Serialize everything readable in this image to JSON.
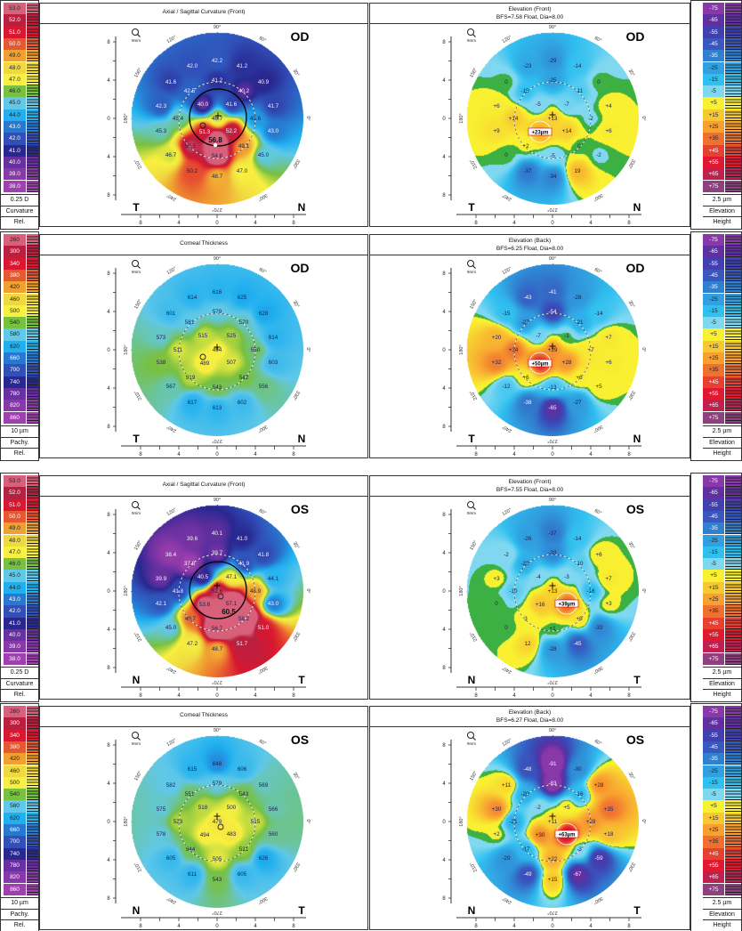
{
  "scales": {
    "curvature": {
      "stops": [
        {
          "label": "53.0",
          "value": 53,
          "color": "#d8607a"
        },
        {
          "label": "52.0",
          "value": 52,
          "color": "#b82040"
        },
        {
          "label": "51.0",
          "value": 51,
          "color": "#d81830"
        },
        {
          "label": "50.0",
          "value": 50,
          "color": "#e85830"
        },
        {
          "label": "49.0",
          "value": 49,
          "color": "#f0a030"
        },
        {
          "label": "48.0",
          "value": 48,
          "color": "#f0d840"
        },
        {
          "label": "47.0",
          "value": 47,
          "color": "#f8f040"
        },
        {
          "label": "46.0",
          "value": 46,
          "color": "#78c040"
        },
        {
          "label": "45.0",
          "value": 45,
          "color": "#60c8e8"
        },
        {
          "label": "44.0",
          "value": 44,
          "color": "#20b0f0"
        },
        {
          "label": "43.0",
          "value": 43,
          "color": "#2878d0"
        },
        {
          "label": "42.0",
          "value": 42,
          "color": "#3050b8"
        },
        {
          "label": "41.0",
          "value": 41,
          "color": "#282890"
        },
        {
          "label": "40.0",
          "value": 40,
          "color": "#6830a0"
        },
        {
          "label": "39.0",
          "value": 39,
          "color": "#8838a8"
        },
        {
          "label": "38.0",
          "value": 38,
          "color": "#a040b0"
        }
      ],
      "footer": [
        "0.25 D",
        "Curvature",
        "Rel."
      ]
    },
    "pachymetry": {
      "stops": [
        {
          "label": "260",
          "value": 260,
          "color": "#d8607a"
        },
        {
          "label": "300",
          "value": 300,
          "color": "#b82040"
        },
        {
          "label": "340",
          "value": 340,
          "color": "#d81830"
        },
        {
          "label": "380",
          "value": 380,
          "color": "#e85830"
        },
        {
          "label": "420",
          "value": 420,
          "color": "#f0a030"
        },
        {
          "label": "460",
          "value": 460,
          "color": "#f0d840"
        },
        {
          "label": "500",
          "value": 500,
          "color": "#f8f040"
        },
        {
          "label": "540",
          "value": 540,
          "color": "#78c040"
        },
        {
          "label": "580",
          "value": 580,
          "color": "#60c8e8"
        },
        {
          "label": "620",
          "value": 620,
          "color": "#20b0f0"
        },
        {
          "label": "660",
          "value": 660,
          "color": "#2878d0"
        },
        {
          "label": "700",
          "value": 700,
          "color": "#3050b8"
        },
        {
          "label": "740",
          "value": 740,
          "color": "#282890"
        },
        {
          "label": "780",
          "value": 780,
          "color": "#6830a0"
        },
        {
          "label": "820",
          "value": 820,
          "color": "#8838a8"
        },
        {
          "label": "860",
          "value": 860,
          "color": "#a040b0"
        }
      ],
      "footer": [
        "10 µm",
        "Pachy.",
        "Rel."
      ]
    },
    "elevation": {
      "stops": [
        {
          "label": "-75",
          "value": -75,
          "color": "#8838a8"
        },
        {
          "label": "-65",
          "value": -65,
          "color": "#6030a0"
        },
        {
          "label": "-55",
          "value": -55,
          "color": "#4040b0"
        },
        {
          "label": "-45",
          "value": -45,
          "color": "#3858c0"
        },
        {
          "label": "-35",
          "value": -35,
          "color": "#3080d0"
        },
        {
          "label": "-25",
          "value": -25,
          "color": "#30a0e0"
        },
        {
          "label": "-15",
          "value": -15,
          "color": "#30c0f0"
        },
        {
          "label": "-5",
          "value": -5,
          "color": "#80d8f0"
        },
        {
          "label": "+5",
          "value": 5,
          "color": "#f8f030"
        },
        {
          "label": "+15",
          "value": 15,
          "color": "#f8c830"
        },
        {
          "label": "+25",
          "value": 25,
          "color": "#f8a030"
        },
        {
          "label": "+35",
          "value": 35,
          "color": "#f07030"
        },
        {
          "label": "+45",
          "value": 45,
          "color": "#e84030"
        },
        {
          "label": "+55",
          "value": 55,
          "color": "#e01830"
        },
        {
          "label": "+65",
          "value": 65,
          "color": "#c02050"
        },
        {
          "label": "+75",
          "value": 75,
          "color": "#904080"
        }
      ],
      "zero_color": "#3cb043",
      "footer": [
        "2.5 µm",
        "Elevation",
        "Height"
      ]
    }
  },
  "rows": [
    {
      "left": "curvature",
      "right": "elevation"
    },
    {
      "left": "pachymetry",
      "right": "elevation"
    },
    {
      "left": "curvature",
      "right": "elevation"
    },
    {
      "left": "pachymetry",
      "right": "elevation"
    }
  ],
  "angle_labels": [
    "90°",
    "60°",
    "30°",
    "0°",
    "330°",
    "300°",
    "270°",
    "240°",
    "210°",
    "180°",
    "150°",
    "120°"
  ],
  "axis_ticks": [
    "8",
    "4",
    "0",
    "4",
    "8"
  ],
  "zoom_label": "9mm",
  "panels": [
    {
      "title": "Axial / Sagittal Curvature (Front)",
      "subtitle": "",
      "eye": "OD",
      "scale": "curvature",
      "orientation": [
        "T",
        "N"
      ],
      "values": [
        "42.2",
        "42.0",
        "41.2",
        "41.6",
        "41.2",
        "40.9",
        "42.5",
        "40.2",
        "42.3",
        "40.0",
        "41.6",
        "41.7",
        "45.4",
        "46.7",
        "43.6",
        "45.3",
        "51.3",
        "52.2",
        "43.0",
        "52.5",
        "49.1",
        "46.7",
        "54.6",
        "45.0",
        "50.2",
        "47.0",
        "48.7"
      ],
      "max_label": "56.8"
    },
    {
      "title": "Elevation (Front)",
      "subtitle": "BFS=7.58 Float, Dia=8.00",
      "eye": "OD",
      "scale": "elevation",
      "orientation": [
        "T",
        "N"
      ],
      "values": [
        "-29",
        "-23",
        "-14",
        "0",
        "-25",
        "0",
        "-15",
        "-11",
        "+6",
        "-5",
        "-7",
        "+4",
        "+14",
        "+13",
        "-2",
        "+9",
        "",
        "+14",
        "+6",
        "+2",
        "0",
        "0",
        "-5",
        "-2",
        "-37",
        "19",
        "-34"
      ],
      "box_label": "+23µm"
    },
    {
      "title": "Corneal Thickness",
      "subtitle": "",
      "eye": "OD",
      "scale": "pachymetry",
      "orientation": [
        "T",
        "N"
      ],
      "values": [
        "616",
        "614",
        "625",
        "601",
        "579",
        "628",
        "581",
        "570",
        "573",
        "515",
        "525",
        "614",
        "511",
        "494",
        "550",
        "538",
        "489",
        "507",
        "603",
        "519",
        "542",
        "567",
        "543",
        "556",
        "617",
        "602",
        "613"
      ]
    },
    {
      "title": "Elevation (Back)",
      "subtitle": "BFS=6.25 Float, Dia=8.00",
      "eye": "OD",
      "scale": "elevation",
      "orientation": [
        "T",
        "N"
      ],
      "values": [
        "-41",
        "-43",
        "-28",
        "-15",
        "-54",
        "-14",
        "-27",
        "-21",
        "+20",
        "-7",
        "-1",
        "+7",
        "+34",
        "+29",
        "+7",
        "+32",
        "",
        "+28",
        "+6",
        "+6",
        "+6",
        "-12",
        "-13",
        "+5",
        "-38",
        "-27",
        "-65"
      ],
      "box_label": "+50µm"
    },
    {
      "title": "Axial / Sagittal Curvature (Front)",
      "subtitle": "",
      "eye": "OS",
      "scale": "curvature",
      "orientation": [
        "N",
        "T"
      ],
      "values": [
        "40.1",
        "39.6",
        "41.0",
        "38.4",
        "39.7",
        "41.8",
        "37.8",
        "41.9",
        "39.9",
        "40.5",
        "47.1",
        "44.1",
        "41.8",
        "52.6",
        "48.9",
        "42.1",
        "53.8",
        "57.1",
        "43.0",
        "49.7",
        "58.2",
        "45.0",
        "56.7",
        "51.0",
        "47.2",
        "51.7",
        "48.7"
      ],
      "max_label": "60.5"
    },
    {
      "title": "Elevation (Front)",
      "subtitle": "BFS=7.55 Float, Dia=8.00",
      "eye": "OS",
      "scale": "elevation",
      "orientation": [
        "N",
        "T"
      ],
      "values": [
        "-37",
        "-26",
        "-14",
        "-2",
        "-33",
        "+6",
        "-22",
        "-10",
        "+3",
        "-4",
        "-3",
        "+7",
        "-10",
        "+13",
        "-16",
        "0",
        "+16",
        "",
        "+3",
        "3",
        "+8",
        "0",
        "+1",
        "-33",
        "12",
        "-45",
        "-28"
      ],
      "box_label": "+39µm"
    },
    {
      "title": "Corneal Thickness",
      "subtitle": "",
      "eye": "OS",
      "scale": "pachymetry",
      "orientation": [
        "N",
        "T"
      ],
      "values": [
        "648",
        "615",
        "606",
        "582",
        "579",
        "569",
        "551",
        "543",
        "575",
        "518",
        "500",
        "566",
        "523",
        "479",
        "515",
        "578",
        "494",
        "483",
        "560",
        "544",
        "531",
        "605",
        "505",
        "626",
        "611",
        "605",
        "543"
      ]
    },
    {
      "title": "Elevation (Back)",
      "subtitle": "BFS=6.27 Float, Dia=8.00",
      "eye": "OS",
      "scale": "elevation",
      "orientation": [
        "N",
        "T"
      ],
      "values": [
        "-91",
        "-48",
        "-30",
        "+11",
        "-83",
        "+28",
        "-20",
        "-16",
        "+30",
        "-2",
        "+5",
        "+35",
        "-21",
        "+11",
        "+28",
        "+2",
        "+30",
        "",
        "+18",
        "-17",
        "-3",
        "-29",
        "+22",
        "-59",
        "-49",
        "-67",
        "+15"
      ],
      "box_label": "+63µm"
    }
  ]
}
